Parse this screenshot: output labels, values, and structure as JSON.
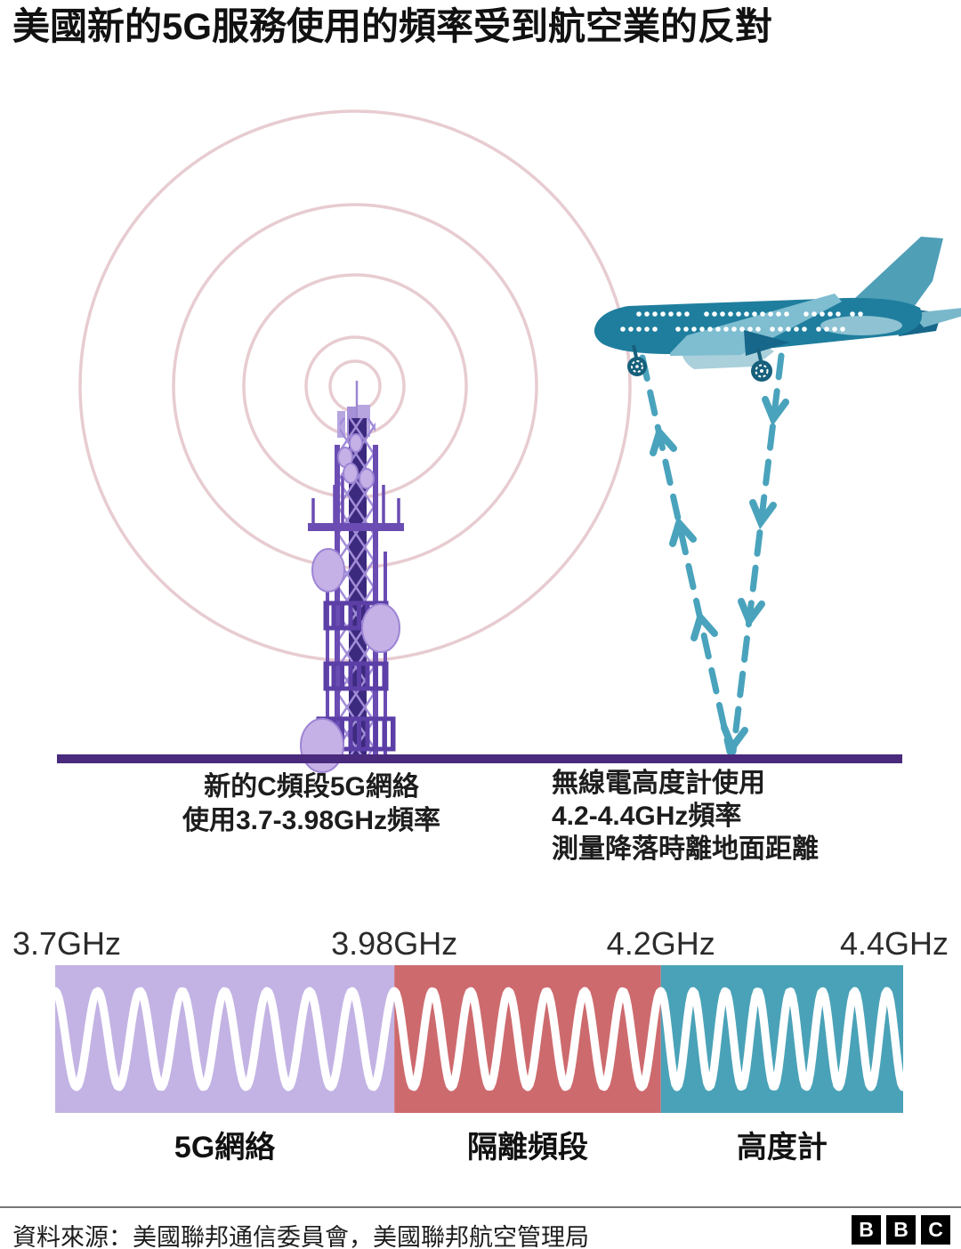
{
  "title": "美國新的5G服務使用的頻率受到航空業的反對",
  "colors": {
    "radio_wave_pink": "#e7ccd1",
    "ground": "#4a2a7d",
    "altimeter_beam": "#4aa3bc",
    "wave_stroke": "#ffffff",
    "band_5g": "#c3b3e4",
    "band_guard": "#cd6a6e",
    "band_altimeter": "#4aa2b8"
  },
  "illustration": {
    "tower_label": {
      "line1": "新的C頻段5G網絡",
      "line2": "使用3.7-3.98GHz頻率"
    },
    "plane_label": {
      "line1": "無線電高度計使用",
      "line2": "4.2-4.4GHz頻率",
      "line3": "測量降落時離地面距離"
    }
  },
  "chart_data": {
    "type": "area",
    "title": "3.7GHz–4.4GHz frequency band allocation",
    "x_unit": "GHz",
    "axis_range_ghz": [
      3.7,
      4.4
    ],
    "tick_labels": [
      "3.7GHz",
      "3.98GHz",
      "4.2GHz",
      "4.4GHz"
    ],
    "tick_values_ghz": [
      3.7,
      3.98,
      4.2,
      4.4
    ],
    "bands": [
      {
        "label": "5G網絡",
        "start_ghz": 3.7,
        "end_ghz": 3.98,
        "color": "#c3b3e4",
        "wave_cycles": 8
      },
      {
        "label": "隔離頻段",
        "start_ghz": 3.98,
        "end_ghz": 4.2,
        "color": "#cd6a6e",
        "wave_cycles": 7
      },
      {
        "label": "高度計",
        "start_ghz": 4.2,
        "end_ghz": 4.4,
        "color": "#4aa2b8",
        "wave_cycles": 7.5
      }
    ],
    "legend": "off",
    "grid": "off"
  },
  "footer": {
    "source": "資料來源：美國聯邦通信委員會，美國聯邦航空管理局",
    "logo_letters": [
      "B",
      "B",
      "C"
    ]
  }
}
